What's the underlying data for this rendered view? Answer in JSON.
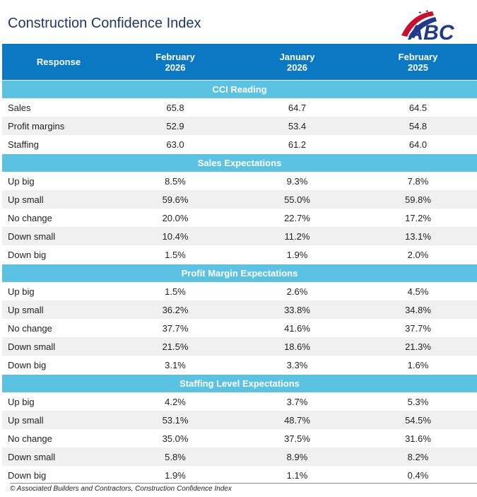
{
  "header": {
    "title": "Construction Confidence Index",
    "logo": "ABC"
  },
  "table": {
    "columns": [
      "Response",
      "February\n2026",
      "January\n2026",
      "February\n2025"
    ],
    "sections": [
      {
        "title": "CCI Reading",
        "rows": [
          [
            "Sales",
            "65.8",
            "64.7",
            "64.5"
          ],
          [
            "Profit margins",
            "52.9",
            "53.4",
            "54.8"
          ],
          [
            "Staffing",
            "63.0",
            "61.2",
            "64.0"
          ]
        ]
      },
      {
        "title": "Sales Expectations",
        "rows": [
          [
            "Up big",
            "8.5%",
            "9.3%",
            "7.8%"
          ],
          [
            "Up small",
            "59.6%",
            "55.0%",
            "59.8%"
          ],
          [
            "No change",
            "20.0%",
            "22.7%",
            "17.2%"
          ],
          [
            "Down small",
            "10.4%",
            "11.2%",
            "13.1%"
          ],
          [
            "Down big",
            "1.5%",
            "1.9%",
            "2.0%"
          ]
        ]
      },
      {
        "title": "Profit Margin Expectations",
        "rows": [
          [
            "Up big",
            "1.5%",
            "2.6%",
            "4.5%"
          ],
          [
            "Up small",
            "36.2%",
            "33.8%",
            "34.8%"
          ],
          [
            "No change",
            "37.7%",
            "41.6%",
            "37.7%"
          ],
          [
            "Down small",
            "21.5%",
            "18.6%",
            "21.3%"
          ],
          [
            "Down big",
            "3.1%",
            "3.3%",
            "1.6%"
          ]
        ]
      },
      {
        "title": "Staffing Level Expectations",
        "rows": [
          [
            "Up big",
            "4.2%",
            "3.7%",
            "5.3%"
          ],
          [
            "Up small",
            "53.1%",
            "48.7%",
            "54.5%"
          ],
          [
            "No change",
            "35.0%",
            "37.5%",
            "31.6%"
          ],
          [
            "Down small",
            "5.8%",
            "8.9%",
            "8.2%"
          ],
          [
            "Down big",
            "1.9%",
            "1.1%",
            "0.4%"
          ]
        ]
      }
    ]
  },
  "footer": "© Associated Builders and Contractors, Construction Confidence Index"
}
